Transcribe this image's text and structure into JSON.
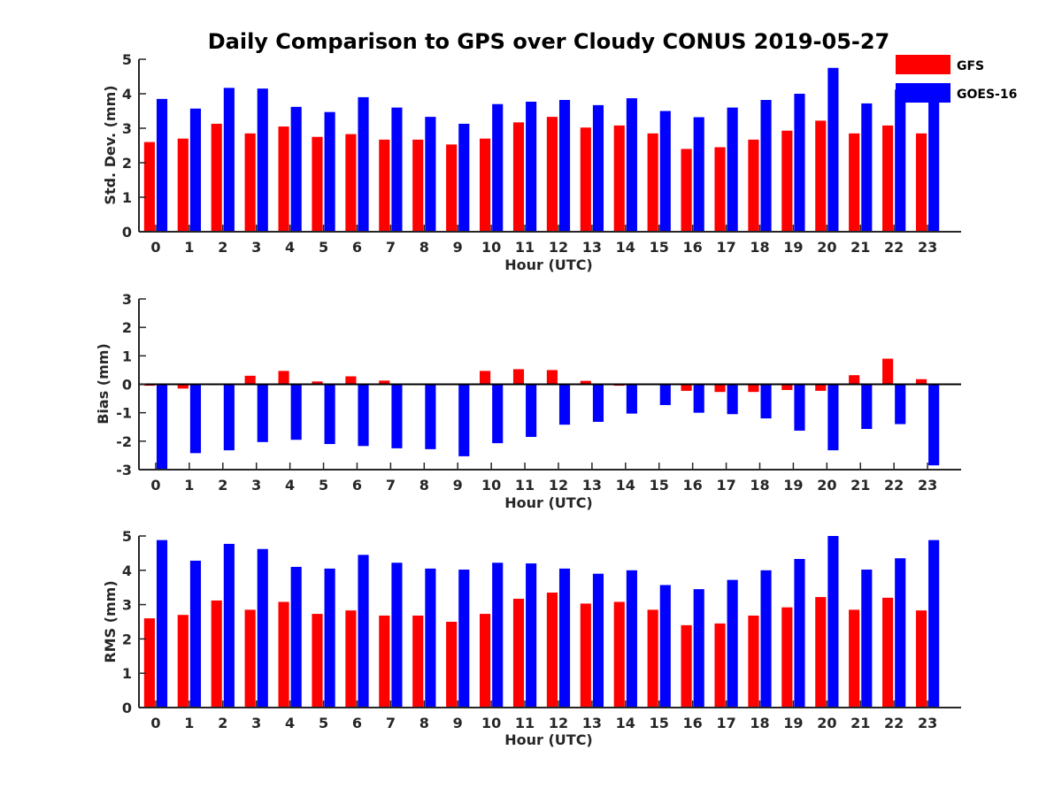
{
  "title": "Daily Comparison to GPS over Cloudy CONUS 2019-05-27",
  "legend": {
    "placement": "top-right",
    "items": [
      {
        "label": "GFS",
        "color": "#ff0000"
      },
      {
        "label": "GOES-16",
        "color": "#0000ff"
      }
    ]
  },
  "chart_data": [
    {
      "type": "bar",
      "xlabel": "Hour (UTC)",
      "ylabel": "Std. Dev. (mm)",
      "ylim": [
        0,
        5
      ],
      "yticks": [
        0,
        1,
        2,
        3,
        4,
        5
      ],
      "categories": [
        "0",
        "1",
        "2",
        "3",
        "4",
        "5",
        "6",
        "7",
        "8",
        "9",
        "10",
        "11",
        "12",
        "13",
        "14",
        "15",
        "16",
        "17",
        "18",
        "19",
        "20",
        "21",
        "22",
        "23"
      ],
      "series": [
        {
          "name": "GFS",
          "color": "#ff0000",
          "values": [
            2.6,
            2.7,
            3.13,
            2.85,
            3.05,
            2.75,
            2.83,
            2.67,
            2.67,
            2.53,
            2.7,
            3.17,
            3.33,
            3.02,
            3.08,
            2.85,
            2.4,
            2.45,
            2.67,
            2.93,
            3.22,
            2.85,
            3.08,
            2.85
          ]
        },
        {
          "name": "GOES-16",
          "color": "#0000ff",
          "values": [
            3.85,
            3.57,
            4.17,
            4.15,
            3.62,
            3.47,
            3.9,
            3.6,
            3.33,
            3.13,
            3.7,
            3.77,
            3.82,
            3.67,
            3.87,
            3.5,
            3.32,
            3.6,
            3.82,
            4.0,
            4.75,
            3.72,
            4.12,
            3.9
          ]
        }
      ]
    },
    {
      "type": "bar",
      "xlabel": "Hour (UTC)",
      "ylabel": "Bias (mm)",
      "ylim": [
        -3,
        3
      ],
      "yticks": [
        -3,
        -2,
        -1,
        0,
        1,
        2,
        3
      ],
      "categories": [
        "0",
        "1",
        "2",
        "3",
        "4",
        "5",
        "6",
        "7",
        "8",
        "9",
        "10",
        "11",
        "12",
        "13",
        "14",
        "15",
        "16",
        "17",
        "18",
        "19",
        "20",
        "21",
        "22",
        "23"
      ],
      "series": [
        {
          "name": "GFS",
          "color": "#ff0000",
          "values": [
            -0.05,
            -0.15,
            0.02,
            0.3,
            0.47,
            0.1,
            0.28,
            0.13,
            -0.02,
            0.02,
            0.47,
            0.53,
            0.5,
            0.12,
            -0.05,
            -0.03,
            -0.23,
            -0.27,
            -0.27,
            -0.2,
            -0.23,
            0.32,
            0.9,
            0.18
          ]
        },
        {
          "name": "GOES-16",
          "color": "#0000ff",
          "values": [
            -3.0,
            -2.42,
            -2.32,
            -2.03,
            -1.95,
            -2.1,
            -2.17,
            -2.25,
            -2.28,
            -2.53,
            -2.07,
            -1.85,
            -1.42,
            -1.32,
            -1.03,
            -0.73,
            -1.0,
            -1.05,
            -1.2,
            -1.63,
            -2.32,
            -1.57,
            -1.4,
            -2.85
          ]
        }
      ]
    },
    {
      "type": "bar",
      "xlabel": "Hour (UTC)",
      "ylabel": "RMS (mm)",
      "ylim": [
        0,
        5
      ],
      "yticks": [
        0,
        1,
        2,
        3,
        4,
        5
      ],
      "categories": [
        "0",
        "1",
        "2",
        "3",
        "4",
        "5",
        "6",
        "7",
        "8",
        "9",
        "10",
        "11",
        "12",
        "13",
        "14",
        "15",
        "16",
        "17",
        "18",
        "19",
        "20",
        "21",
        "22",
        "23"
      ],
      "series": [
        {
          "name": "GFS",
          "color": "#ff0000",
          "values": [
            2.6,
            2.7,
            3.12,
            2.85,
            3.08,
            2.73,
            2.83,
            2.68,
            2.68,
            2.5,
            2.73,
            3.17,
            3.35,
            3.03,
            3.08,
            2.85,
            2.4,
            2.45,
            2.68,
            2.92,
            3.22,
            2.85,
            3.2,
            2.83
          ]
        },
        {
          "name": "GOES-16",
          "color": "#0000ff",
          "values": [
            4.88,
            4.28,
            4.77,
            4.62,
            4.1,
            4.05,
            4.45,
            4.22,
            4.05,
            4.02,
            4.22,
            4.2,
            4.05,
            3.9,
            4.0,
            3.57,
            3.45,
            3.72,
            4.0,
            4.33,
            5.0,
            4.02,
            4.35,
            4.88
          ]
        }
      ]
    }
  ]
}
